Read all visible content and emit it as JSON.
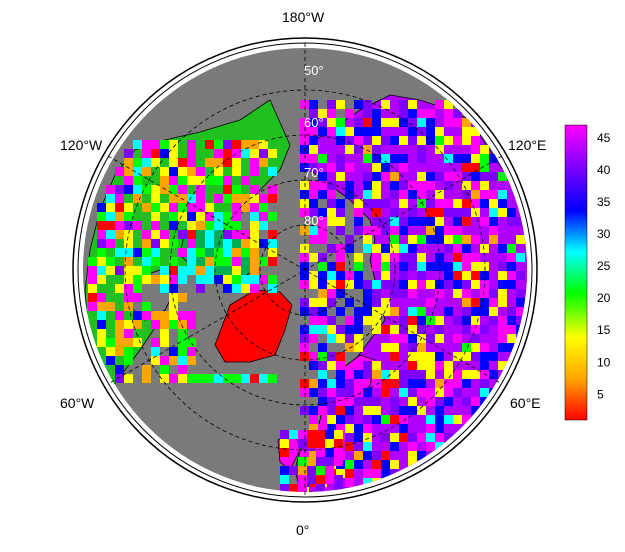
{
  "map": {
    "projection": "north polar stereographic",
    "ocean_color": "#7a7a7a",
    "land_outline_color": "#000000",
    "grid_line_color": "#000000",
    "grid_line_style": "dashed",
    "longitude_labels": [
      {
        "label": "180°W",
        "lon": 180
      },
      {
        "label": "120°E",
        "lon": 120
      },
      {
        "label": "60°E",
        "lon": 60
      },
      {
        "label": "0°",
        "lon": 0
      },
      {
        "label": "60°W",
        "lon": -60
      },
      {
        "label": "120°W",
        "lon": -120
      }
    ],
    "latitude_labels": [
      {
        "label": "50°",
        "lat": 50
      },
      {
        "label": "60°",
        "lat": 60
      },
      {
        "label": "70°",
        "lat": 70
      },
      {
        "label": "80°",
        "lat": 80
      }
    ]
  },
  "colorbar": {
    "min": 1,
    "max": 47,
    "ticks": [
      "45",
      "40",
      "35",
      "30",
      "25",
      "20",
      "15",
      "10",
      "5"
    ],
    "tick_values": [
      45,
      40,
      35,
      30,
      25,
      20,
      15,
      10,
      5
    ],
    "colors": [
      "#ff0000",
      "#ffa500",
      "#ffff00",
      "#00ff00",
      "#00ffff",
      "#0000ff",
      "#8000ff",
      "#ff00ff"
    ]
  }
}
